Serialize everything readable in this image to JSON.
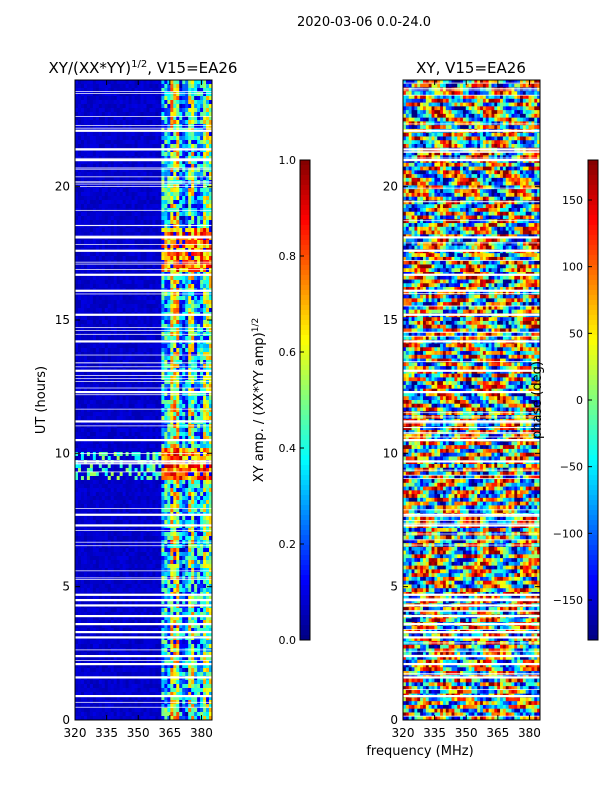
{
  "suptitle": "2020-03-06 0.0-24.0",
  "chart_data": [
    {
      "type": "heatmap",
      "title": "XY/(XX*YY)^1/2, V15=EA26",
      "title_main": "XY/(XX*YY)",
      "title_sup": "1/2",
      "title_rest": ", V15=EA26",
      "xlabel": "",
      "ylabel": "UT (hours)",
      "xlim": [
        320,
        385
      ],
      "ylim": [
        0,
        24
      ],
      "x_ticks": [
        320,
        335,
        350,
        365,
        380
      ],
      "y_ticks": [
        0,
        5,
        10,
        15,
        20
      ],
      "colormap": "jet",
      "clim": [
        0.0,
        1.0
      ],
      "colorbar_ticks": [
        "0.0",
        "0.2",
        "0.4",
        "0.6",
        "0.8",
        "1.0"
      ],
      "colorbar_label": "XY amp. / (XX*YY amp)^1/2",
      "colorbar_label_main": "XY amp. / (XX*YY amp)",
      "colorbar_label_sup": "1/2",
      "blank_hours": [
        0.9,
        1.6,
        2.1,
        2.4,
        3.1,
        3.3,
        3.6,
        3.9,
        4.3,
        4.5,
        4.7,
        7.3,
        7.7,
        9.7,
        10.5,
        11.2,
        12.3,
        13.1,
        14.2,
        15.2,
        16.1,
        16.7,
        17.6,
        18.1,
        21.0,
        21.4,
        22.1
      ]
    },
    {
      "type": "heatmap",
      "title": "XY, V15=EA26",
      "xlabel": "frequency (MHz)",
      "ylabel": "",
      "xlim": [
        320,
        385
      ],
      "ylim": [
        0,
        24
      ],
      "x_ticks": [
        320,
        335,
        350,
        365,
        380
      ],
      "y_ticks": [
        0,
        5,
        10,
        15,
        20
      ],
      "colormap": "jet",
      "clim": [
        -180,
        180
      ],
      "colorbar_ticks": [
        "−150",
        "−100",
        "−50",
        "0",
        "50",
        "100",
        "150"
      ],
      "colorbar_tick_values": [
        -150,
        -100,
        -50,
        0,
        50,
        100,
        150
      ],
      "colorbar_label": "phase (deg)",
      "blank_hours": [
        0.9,
        1.6,
        2.1,
        2.4,
        3.1,
        3.3,
        3.6,
        3.9,
        4.3,
        4.5,
        4.7,
        7.3,
        7.7,
        9.7,
        10.5,
        11.2,
        12.3,
        13.1,
        14.2,
        15.2,
        16.1,
        16.7,
        17.6,
        18.1,
        21.0,
        21.4,
        22.1
      ]
    }
  ]
}
